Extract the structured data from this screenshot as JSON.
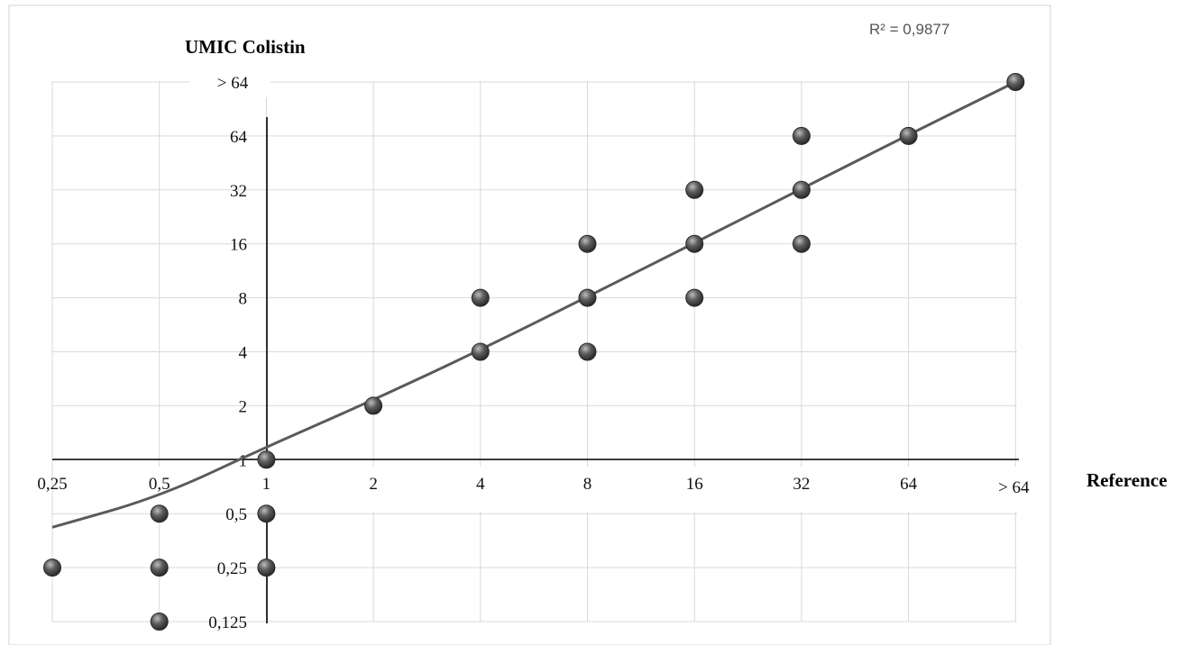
{
  "chart_data": {
    "type": "scatter",
    "title": "UMIC Colistin",
    "xlabel": "Reference",
    "ylabel": "UMIC Colistin",
    "x_ticks": [
      "0,25",
      "0,5",
      "1",
      "2",
      "4",
      "8",
      "16",
      "32",
      "64",
      "> 64"
    ],
    "y_ticks": [
      "0,125",
      "0,25",
      "0,5",
      "1",
      "2",
      "4",
      "8",
      "16",
      "32",
      "64",
      "> 64"
    ],
    "x_scale": "log2",
    "y_scale": "log2",
    "grid": true,
    "annotation": "R² = 0,9877",
    "points": [
      {
        "x": "0,25",
        "y": "0,25"
      },
      {
        "x": "0,5",
        "y": "0,5"
      },
      {
        "x": "0,5",
        "y": "0,25"
      },
      {
        "x": "0,5",
        "y": "0,125"
      },
      {
        "x": "1",
        "y": "1"
      },
      {
        "x": "1",
        "y": "0,5"
      },
      {
        "x": "1",
        "y": "0,25"
      },
      {
        "x": "2",
        "y": "2"
      },
      {
        "x": "4",
        "y": "4"
      },
      {
        "x": "4",
        "y": "8"
      },
      {
        "x": "8",
        "y": "4"
      },
      {
        "x": "8",
        "y": "8"
      },
      {
        "x": "8",
        "y": "16"
      },
      {
        "x": "16",
        "y": "8"
      },
      {
        "x": "16",
        "y": "16"
      },
      {
        "x": "16",
        "y": "32"
      },
      {
        "x": "32",
        "y": "16"
      },
      {
        "x": "32",
        "y": "32"
      },
      {
        "x": "32",
        "y": "64"
      },
      {
        "x": "64",
        "y": "64"
      },
      {
        "x": "> 64",
        "y": "> 64"
      }
    ],
    "trendline": {
      "type": "polynomial",
      "points": [
        {
          "x": "0,25",
          "y": 0.42
        },
        {
          "x": "0,5",
          "y": 0.62
        },
        {
          "x": "1",
          "y": 1.18
        },
        {
          "x": "2",
          "y": 2.15
        },
        {
          "x": "4",
          "y": 4.1
        },
        {
          "x": "8",
          "y": 8.1
        },
        {
          "x": "16",
          "y": 16.2
        },
        {
          "x": "32",
          "y": 32.4
        },
        {
          "x": "64",
          "y": 65
        },
        {
          "x": "> 64",
          "y": 128
        }
      ]
    },
    "colors": {
      "marker_fill": "#555555",
      "marker_edge": "#2a2a2a",
      "marker_highlight": "#b8b8b8",
      "trendline": "#5a5a5a",
      "grid": "#d9d9d9",
      "axis": "#000000"
    }
  }
}
